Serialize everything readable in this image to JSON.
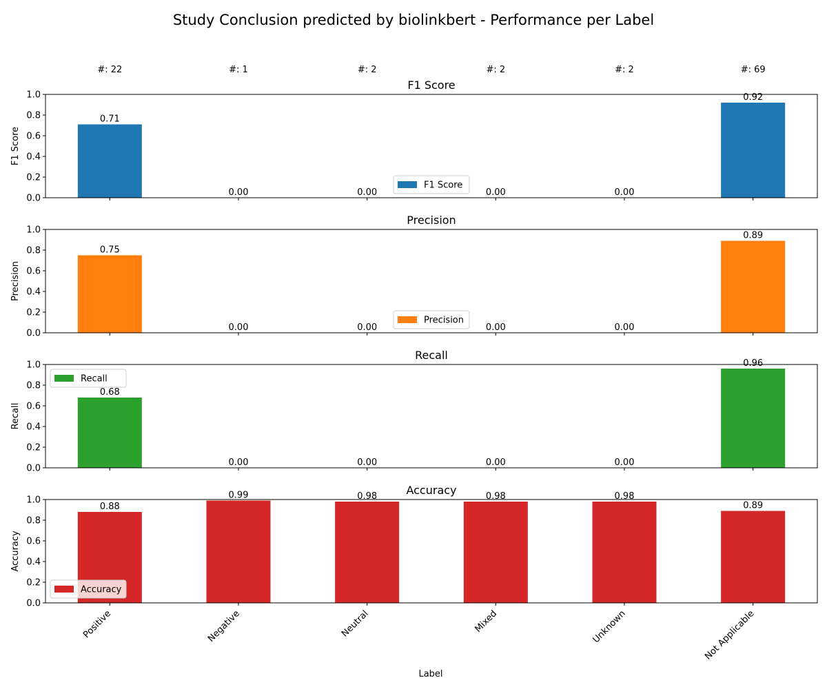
{
  "figure": {
    "title": "Study Conclusion predicted by biolinkbert - Performance per Label",
    "xlabel": "Label"
  },
  "chart_data": {
    "type": "bar",
    "categories": [
      "Positive",
      "Negative",
      "Neutral",
      "Mixed",
      "Unknown",
      "Not Applicable"
    ],
    "support_labels": [
      "#: 22",
      "#: 1",
      "#: 2",
      "#: 2",
      "#: 2",
      "#: 69"
    ],
    "ylim": [
      0,
      1.0
    ],
    "yticks": [
      0.0,
      0.2,
      0.4,
      0.6,
      0.8,
      1.0
    ],
    "panels": [
      {
        "title": "F1 Score",
        "ylabel": "F1 Score",
        "series_name": "F1 Score",
        "color": "#1f77b4",
        "values": [
          0.71,
          0.0,
          0.0,
          0.0,
          0.0,
          0.92
        ],
        "legend": "lower-center"
      },
      {
        "title": "Precision",
        "ylabel": "Precision",
        "series_name": "Precision",
        "color": "#ff7f0e",
        "values": [
          0.75,
          0.0,
          0.0,
          0.0,
          0.0,
          0.89
        ],
        "legend": "lower-center"
      },
      {
        "title": "Recall",
        "ylabel": "Recall",
        "series_name": "Recall",
        "color": "#2ca02c",
        "values": [
          0.68,
          0.0,
          0.0,
          0.0,
          0.0,
          0.96
        ],
        "legend": "upper-left"
      },
      {
        "title": "Accuracy",
        "ylabel": "Accuracy",
        "series_name": "Accuracy",
        "color": "#d62728",
        "values": [
          0.88,
          0.99,
          0.98,
          0.98,
          0.98,
          0.89
        ],
        "legend": "lower-left"
      }
    ]
  }
}
